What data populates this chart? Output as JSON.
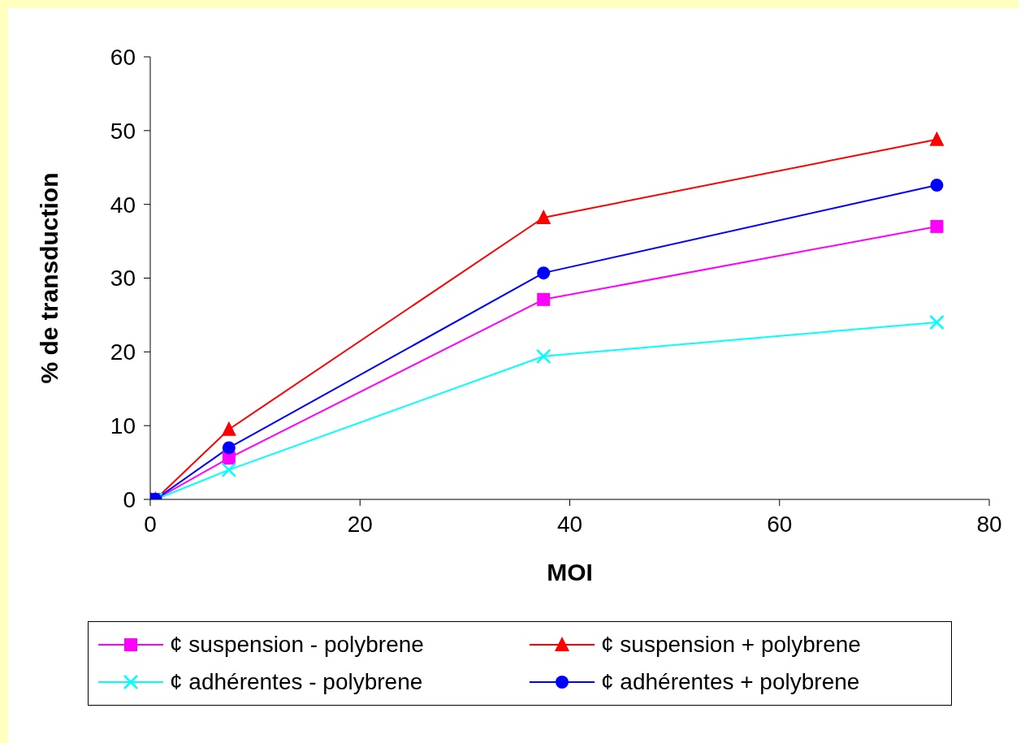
{
  "chart_data": {
    "type": "line",
    "xlabel": "MOI",
    "ylabel": "% de transduction",
    "xlim": [
      0,
      80
    ],
    "xticks": [
      0,
      20,
      40,
      60,
      80
    ],
    "ylim": [
      0,
      60
    ],
    "yticks": [
      0,
      10,
      20,
      30,
      40,
      50,
      60
    ],
    "grid": false,
    "legend": "bottom",
    "line_style": "solid",
    "x": [
      0,
      0.5,
      7.5,
      37.5,
      75
    ],
    "series": [
      {
        "name": "¢ suspension - polybrene",
        "color": "#ff00ff",
        "marker": "square",
        "values": [
          0,
          0,
          5.6,
          27.1,
          37
        ]
      },
      {
        "name": "¢ suspension + polybrene",
        "color": "#ff0000",
        "marker": "triangle",
        "values": [
          0,
          0,
          9.5,
          38.2,
          48.8
        ]
      },
      {
        "name": "¢ adhérentes - polybrene",
        "color": "#00ffff",
        "marker": "cross",
        "values": [
          0,
          0,
          4,
          19.4,
          24
        ]
      },
      {
        "name": "¢ adhérentes + polybrene",
        "color": "#0000ff",
        "marker": "circle",
        "values": [
          0,
          0,
          7,
          30.7,
          42.6
        ]
      }
    ]
  }
}
